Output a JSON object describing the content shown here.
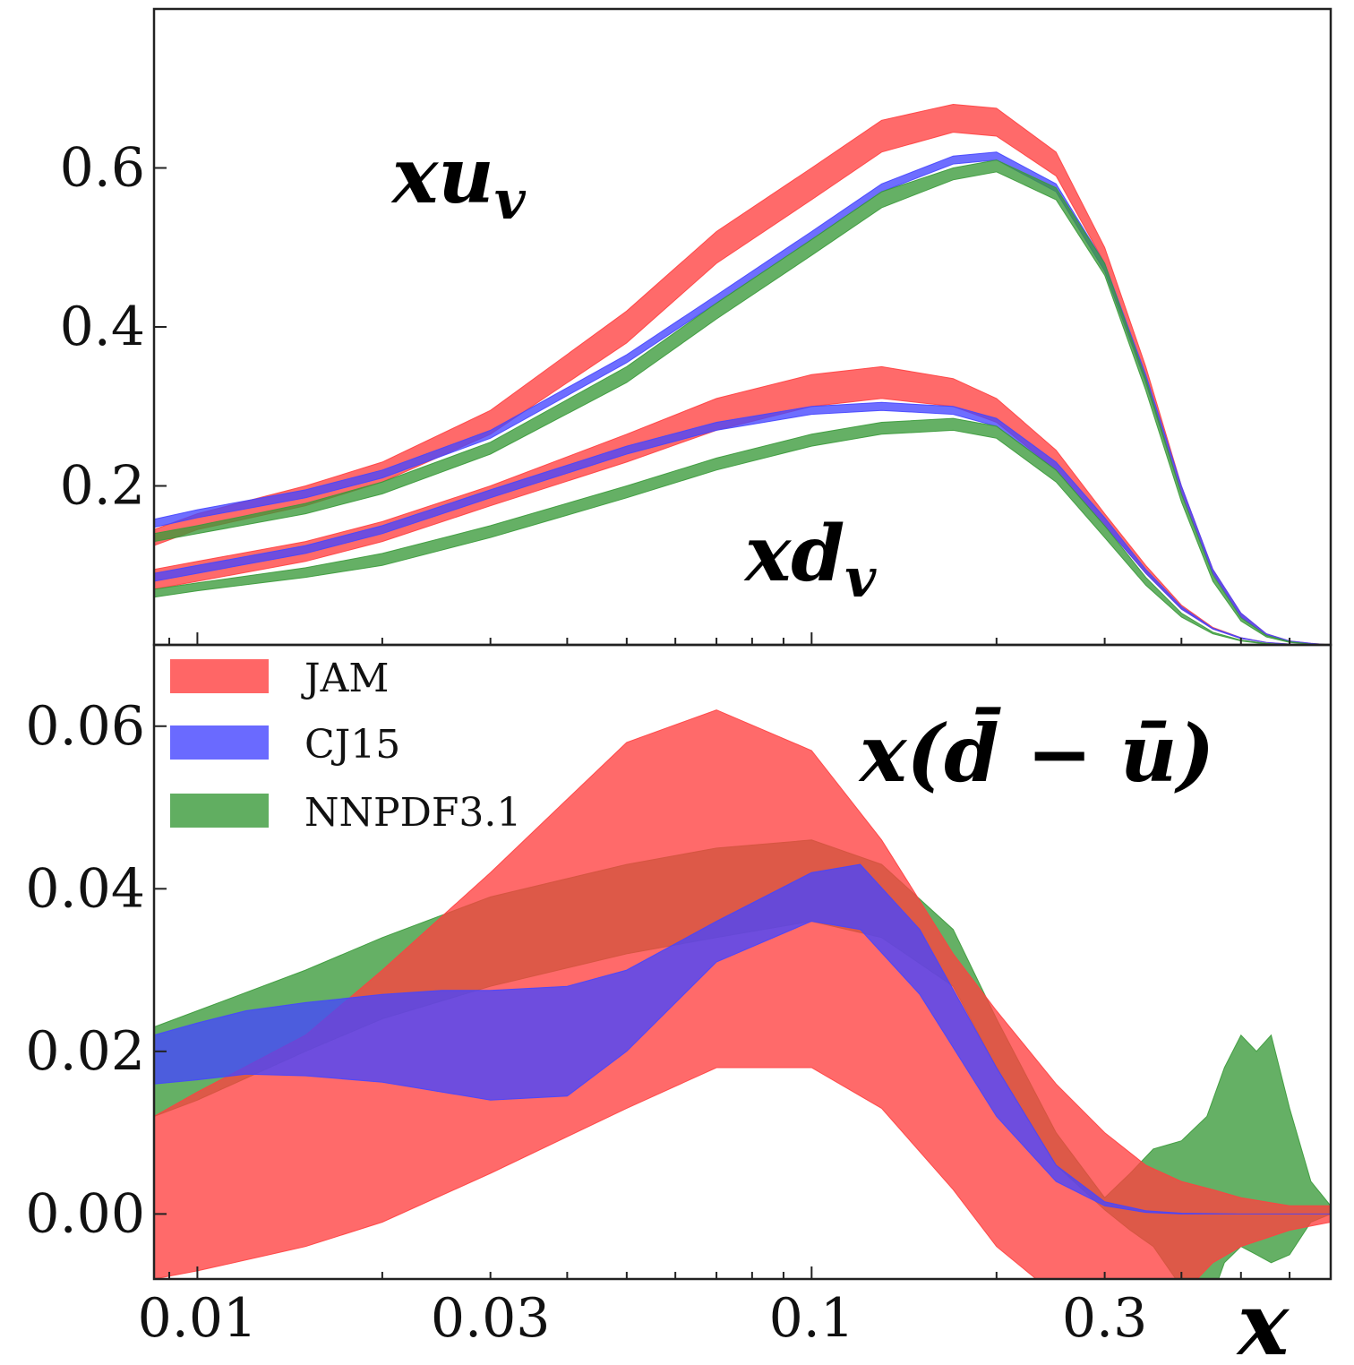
{
  "chart_data": [
    {
      "panel": "top",
      "type": "area",
      "xscale": "log",
      "xlim": [
        0.0085,
        0.7
      ],
      "ylim": [
        0.0,
        0.8
      ],
      "yticks": [
        0.2,
        0.4,
        0.6
      ],
      "ytick_labels": [
        "0.2",
        "0.4",
        "0.6"
      ],
      "annotations": [
        {
          "id": "xuv",
          "main": "xu",
          "sub": "v"
        },
        {
          "id": "xdv",
          "main": "xd",
          "sub": "v"
        }
      ],
      "series": [
        {
          "name": "JAM",
          "color": "#ff4040",
          "group": "xuv",
          "x": [
            0.0085,
            0.01,
            0.015,
            0.02,
            0.03,
            0.05,
            0.07,
            0.1,
            0.13,
            0.17,
            0.2,
            0.25,
            0.3,
            0.35,
            0.4,
            0.45,
            0.5,
            0.55,
            0.6,
            0.65,
            0.7
          ],
          "lower": [
            0.125,
            0.145,
            0.175,
            0.205,
            0.265,
            0.38,
            0.48,
            0.56,
            0.62,
            0.645,
            0.64,
            0.59,
            0.48,
            0.33,
            0.19,
            0.09,
            0.035,
            0.012,
            0.004,
            0.001,
            0.0
          ],
          "upper": [
            0.145,
            0.165,
            0.2,
            0.23,
            0.295,
            0.42,
            0.52,
            0.6,
            0.66,
            0.68,
            0.675,
            0.62,
            0.5,
            0.35,
            0.2,
            0.095,
            0.04,
            0.014,
            0.005,
            0.002,
            0.0
          ]
        },
        {
          "name": "CJ15",
          "color": "#4545ff",
          "group": "xuv",
          "x": [
            0.0085,
            0.01,
            0.015,
            0.02,
            0.03,
            0.05,
            0.07,
            0.1,
            0.13,
            0.17,
            0.2,
            0.25,
            0.3,
            0.35,
            0.4,
            0.45,
            0.5,
            0.55,
            0.6,
            0.65,
            0.7
          ],
          "lower": [
            0.148,
            0.16,
            0.185,
            0.21,
            0.26,
            0.355,
            0.43,
            0.51,
            0.57,
            0.605,
            0.61,
            0.57,
            0.47,
            0.33,
            0.19,
            0.09,
            0.035,
            0.012,
            0.004,
            0.001,
            0.0
          ],
          "upper": [
            0.158,
            0.17,
            0.195,
            0.22,
            0.27,
            0.365,
            0.44,
            0.52,
            0.58,
            0.615,
            0.62,
            0.58,
            0.48,
            0.34,
            0.2,
            0.095,
            0.04,
            0.014,
            0.005,
            0.002,
            0.0
          ]
        },
        {
          "name": "NNPDF3.1",
          "color": "#3a9a3a",
          "group": "xuv",
          "x": [
            0.0085,
            0.01,
            0.015,
            0.02,
            0.03,
            0.05,
            0.07,
            0.1,
            0.13,
            0.17,
            0.2,
            0.25,
            0.3,
            0.35,
            0.4,
            0.45,
            0.5,
            0.55,
            0.6,
            0.65,
            0.7
          ],
          "lower": [
            0.13,
            0.14,
            0.165,
            0.19,
            0.24,
            0.33,
            0.41,
            0.49,
            0.55,
            0.585,
            0.595,
            0.56,
            0.465,
            0.32,
            0.18,
            0.08,
            0.03,
            0.01,
            0.003,
            0.001,
            0.0
          ],
          "upper": [
            0.14,
            0.15,
            0.178,
            0.205,
            0.255,
            0.35,
            0.43,
            0.51,
            0.57,
            0.6,
            0.61,
            0.575,
            0.48,
            0.335,
            0.19,
            0.088,
            0.034,
            0.012,
            0.004,
            0.001,
            0.0
          ]
        },
        {
          "name": "JAM",
          "color": "#ff4040",
          "group": "xdv",
          "x": [
            0.0085,
            0.01,
            0.015,
            0.02,
            0.03,
            0.05,
            0.07,
            0.1,
            0.13,
            0.17,
            0.2,
            0.25,
            0.3,
            0.35,
            0.4,
            0.45,
            0.5,
            0.55,
            0.6,
            0.65,
            0.7
          ],
          "lower": [
            0.07,
            0.08,
            0.105,
            0.13,
            0.175,
            0.23,
            0.27,
            0.3,
            0.31,
            0.3,
            0.28,
            0.22,
            0.15,
            0.09,
            0.045,
            0.02,
            0.008,
            0.003,
            0.001,
            0.0,
            0.0
          ],
          "upper": [
            0.095,
            0.105,
            0.13,
            0.155,
            0.2,
            0.265,
            0.31,
            0.34,
            0.35,
            0.335,
            0.31,
            0.245,
            0.165,
            0.1,
            0.05,
            0.022,
            0.009,
            0.003,
            0.001,
            0.0,
            0.0
          ]
        },
        {
          "name": "CJ15",
          "color": "#4545ff",
          "group": "xdv",
          "x": [
            0.0085,
            0.01,
            0.015,
            0.02,
            0.03,
            0.05,
            0.07,
            0.1,
            0.13,
            0.17,
            0.2,
            0.25,
            0.3,
            0.35,
            0.4,
            0.45,
            0.5,
            0.55,
            0.6,
            0.65,
            0.7
          ],
          "lower": [
            0.08,
            0.09,
            0.115,
            0.14,
            0.185,
            0.24,
            0.27,
            0.29,
            0.295,
            0.29,
            0.275,
            0.22,
            0.15,
            0.09,
            0.045,
            0.02,
            0.008,
            0.003,
            0.001,
            0.0,
            0.0
          ],
          "upper": [
            0.09,
            0.1,
            0.125,
            0.15,
            0.195,
            0.25,
            0.28,
            0.3,
            0.305,
            0.3,
            0.285,
            0.23,
            0.16,
            0.095,
            0.048,
            0.021,
            0.009,
            0.003,
            0.001,
            0.0,
            0.0
          ]
        },
        {
          "name": "NNPDF3.1",
          "color": "#3a9a3a",
          "group": "xdv",
          "x": [
            0.0085,
            0.01,
            0.015,
            0.02,
            0.03,
            0.05,
            0.07,
            0.1,
            0.13,
            0.17,
            0.2,
            0.25,
            0.3,
            0.35,
            0.4,
            0.45,
            0.5,
            0.55,
            0.6,
            0.65,
            0.7
          ],
          "lower": [
            0.06,
            0.068,
            0.085,
            0.1,
            0.135,
            0.185,
            0.22,
            0.25,
            0.265,
            0.27,
            0.26,
            0.205,
            0.135,
            0.075,
            0.035,
            0.014,
            0.005,
            0.001,
            0.0,
            0.0,
            0.0
          ],
          "upper": [
            0.07,
            0.078,
            0.097,
            0.115,
            0.15,
            0.2,
            0.235,
            0.265,
            0.28,
            0.285,
            0.275,
            0.22,
            0.15,
            0.085,
            0.04,
            0.016,
            0.006,
            0.002,
            0.0,
            0.0,
            0.0
          ]
        }
      ]
    },
    {
      "panel": "bottom",
      "type": "area",
      "xscale": "log",
      "xlim": [
        0.0085,
        0.7
      ],
      "ylim": [
        -0.008,
        0.07
      ],
      "xticks": [
        0.01,
        0.03,
        0.1,
        0.3
      ],
      "xtick_labels": [
        "0.01",
        "0.03",
        "0.1",
        "0.3"
      ],
      "xlabel": "x",
      "yticks": [
        0.0,
        0.02,
        0.04,
        0.06
      ],
      "ytick_labels": [
        "0.00",
        "0.02",
        "0.04",
        "0.06"
      ],
      "annotation": "x(d̄ − ū)",
      "legend": {
        "position": "top-left",
        "entries": [
          "JAM",
          "CJ15",
          "NNPDF3.1"
        ]
      },
      "series": [
        {
          "name": "NNPDF3.1",
          "color": "#3a9a3a",
          "x": [
            0.0085,
            0.01,
            0.015,
            0.02,
            0.03,
            0.05,
            0.07,
            0.1,
            0.13,
            0.17,
            0.2,
            0.25,
            0.3,
            0.33,
            0.36,
            0.4,
            0.44,
            0.47,
            0.5,
            0.53,
            0.56,
            0.6,
            0.65,
            0.7
          ],
          "lower": [
            0.012,
            0.014,
            0.02,
            0.024,
            0.028,
            0.032,
            0.034,
            0.036,
            0.034,
            0.028,
            0.018,
            0.006,
            0.0005,
            -0.002,
            -0.004,
            -0.009,
            -0.012,
            -0.006,
            -0.004,
            -0.005,
            -0.006,
            -0.005,
            -0.001,
            0.0
          ],
          "upper": [
            0.023,
            0.025,
            0.03,
            0.034,
            0.039,
            0.043,
            0.045,
            0.046,
            0.043,
            0.035,
            0.024,
            0.01,
            0.002,
            0.005,
            0.008,
            0.009,
            0.012,
            0.018,
            0.022,
            0.02,
            0.022,
            0.013,
            0.004,
            0.001
          ]
        },
        {
          "name": "JAM",
          "color": "#ff4040",
          "x": [
            0.0085,
            0.01,
            0.015,
            0.02,
            0.03,
            0.05,
            0.07,
            0.1,
            0.13,
            0.17,
            0.2,
            0.25,
            0.3,
            0.35,
            0.4,
            0.45,
            0.5,
            0.6,
            0.7
          ],
          "lower": [
            -0.008,
            -0.007,
            -0.004,
            -0.001,
            0.005,
            0.013,
            0.018,
            0.018,
            0.013,
            0.003,
            -0.004,
            -0.01,
            -0.013,
            -0.013,
            -0.01,
            -0.006,
            -0.004,
            -0.002,
            -0.001
          ],
          "upper": [
            0.012,
            0.015,
            0.022,
            0.03,
            0.042,
            0.058,
            0.062,
            0.057,
            0.046,
            0.032,
            0.025,
            0.016,
            0.01,
            0.006,
            0.004,
            0.003,
            0.002,
            0.001,
            0.001
          ]
        },
        {
          "name": "CJ15",
          "color": "#4545ff",
          "x": [
            0.0085,
            0.01,
            0.012,
            0.015,
            0.02,
            0.025,
            0.03,
            0.04,
            0.05,
            0.07,
            0.1,
            0.12,
            0.15,
            0.2,
            0.25,
            0.3,
            0.35,
            0.4,
            0.5,
            0.6,
            0.7
          ],
          "lower": [
            0.016,
            0.0165,
            0.0172,
            0.017,
            0.0162,
            0.015,
            0.014,
            0.0145,
            0.02,
            0.031,
            0.036,
            0.035,
            0.027,
            0.012,
            0.004,
            0.001,
            0.0002,
            0.0,
            0.0,
            0.0,
            0.0
          ],
          "upper": [
            0.022,
            0.0235,
            0.025,
            0.026,
            0.027,
            0.0275,
            0.0275,
            0.028,
            0.03,
            0.036,
            0.042,
            0.043,
            0.035,
            0.018,
            0.006,
            0.0015,
            0.0004,
            0.0001,
            0.0,
            0.0,
            0.0
          ]
        }
      ]
    }
  ]
}
